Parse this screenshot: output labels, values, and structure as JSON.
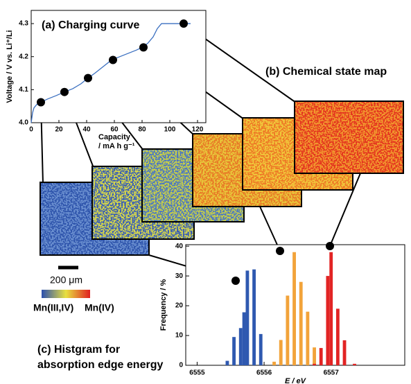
{
  "chart_data": [
    {
      "type": "line",
      "title": "(a) Charging curve",
      "xlabel": [
        "Capacity",
        "/ mA h g⁻¹"
      ],
      "ylabel": "Voltage / V vs. Li⁺/Li",
      "color": "#3a6fc0",
      "x": [
        0,
        1,
        2,
        4,
        7,
        12,
        18,
        24,
        30,
        36,
        40,
        46,
        52,
        58,
        64,
        70,
        76,
        80,
        84,
        88,
        91,
        94,
        96,
        100,
        110,
        115
      ],
      "values": [
        4.0,
        4.03,
        4.045,
        4.055,
        4.062,
        4.072,
        4.082,
        4.093,
        4.103,
        4.118,
        4.132,
        4.15,
        4.17,
        4.19,
        4.2,
        4.21,
        4.22,
        4.228,
        4.24,
        4.26,
        4.285,
        4.3,
        4.3,
        4.3,
        4.3,
        4.3
      ],
      "points": {
        "x": [
          7,
          24,
          41,
          59,
          81,
          110
        ],
        "values": [
          4.062,
          4.093,
          4.135,
          4.19,
          4.228,
          4.3
        ]
      },
      "xlim": [
        0,
        126
      ],
      "xticks": [
        0,
        20,
        40,
        60,
        80,
        100,
        120
      ],
      "ylim": [
        4.0,
        4.34
      ],
      "yticks": [
        {
          "value": 4,
          "label": "4.0"
        },
        4.1,
        4.2,
        4.3
      ]
    },
    {
      "type": "histogram",
      "title": [
        "(c) Histgram for",
        "absorption edge energy"
      ],
      "xlabel": "E / eV",
      "ylabel": "Frequency / %",
      "series": [
        {
          "color": "#2f59b0",
          "x": [
            6555.45,
            6555.55,
            6555.65,
            6555.7,
            6555.75,
            6555.85,
            6555.95
          ],
          "values": [
            1.5,
            9.5,
            12.5,
            17.8,
            31.8,
            32.2,
            10.5
          ]
        },
        {
          "color": "#f2a33a",
          "x": [
            6556.15,
            6556.25,
            6556.35,
            6556.45,
            6556.55,
            6556.65,
            6556.75
          ],
          "values": [
            1.2,
            8.5,
            23.4,
            38,
            28,
            18,
            6
          ]
        },
        {
          "color": "#e22424",
          "x": [
            6556.75,
            6556.85,
            6556.95,
            6557.0,
            6557.1,
            6557.2,
            6557.35
          ],
          "values": [
            0.5,
            5.8,
            30,
            38,
            19,
            8.4,
            0.5
          ]
        }
      ],
      "xlim": [
        6554.83,
        6558.1
      ],
      "xticks": [
        6555,
        6556,
        6557
      ],
      "ylim": [
        0,
        40.5
      ],
      "yticks": [
        0,
        10,
        20,
        30,
        40
      ]
    }
  ],
  "map_title": "(b) Chemical state map",
  "scale_bar": "200 μm",
  "colorbar": {
    "low": "Mn(III,IV)",
    "high": "Mn(IV)"
  }
}
